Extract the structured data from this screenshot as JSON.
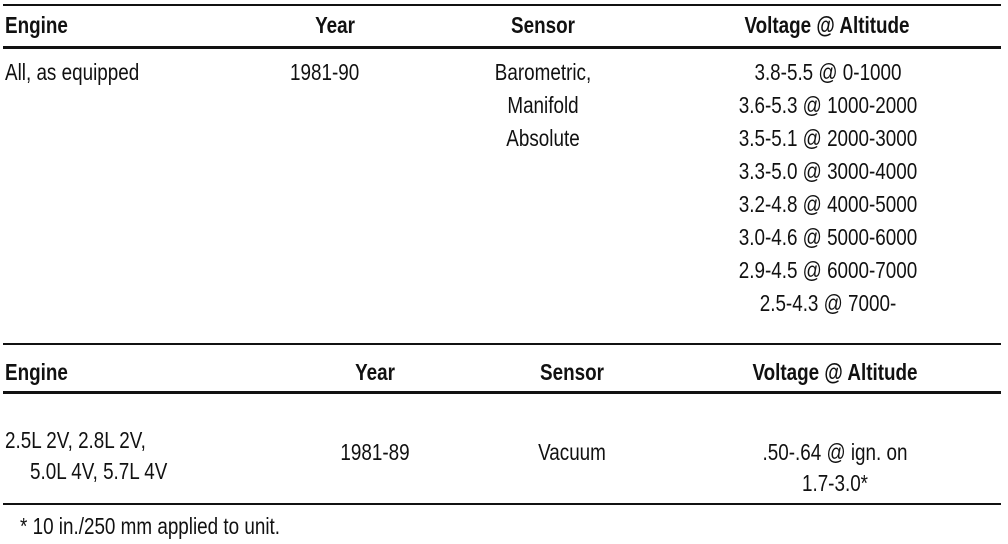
{
  "tables": [
    {
      "header": [
        "Engine",
        "Year",
        "Sensor",
        "Voltage @ Altitude"
      ],
      "rows": [
        [
          [
            "All, as equipped"
          ],
          [
            "1981-90"
          ],
          [
            "Barometric,",
            "Manifold",
            "Absolute"
          ],
          [
            "3.8-5.5 @ 0-1000",
            "3.6-5.3 @ 1000-2000",
            "3.5-5.1 @ 2000-3000",
            "3.3-5.0 @ 3000-4000",
            "3.2-4.8 @ 4000-5000",
            "3.0-4.6 @ 5000-6000",
            "2.9-4.5 @ 6000-7000",
            "2.5-4.3 @ 7000-"
          ]
        ]
      ]
    },
    {
      "header": [
        "Engine",
        "Year",
        "Sensor",
        "Voltage @ Altitude"
      ],
      "rows": [
        [
          [
            "2.5L 2V, 2.8L 2V,",
            "5.0L 4V, 5.7L 4V"
          ],
          [
            "1981-89"
          ],
          [
            "Vacuum"
          ],
          [
            ".50-.64 @ ign. on",
            "1.7-3.0*"
          ]
        ]
      ]
    }
  ],
  "footnote": "*  10 in./250 mm applied to unit."
}
